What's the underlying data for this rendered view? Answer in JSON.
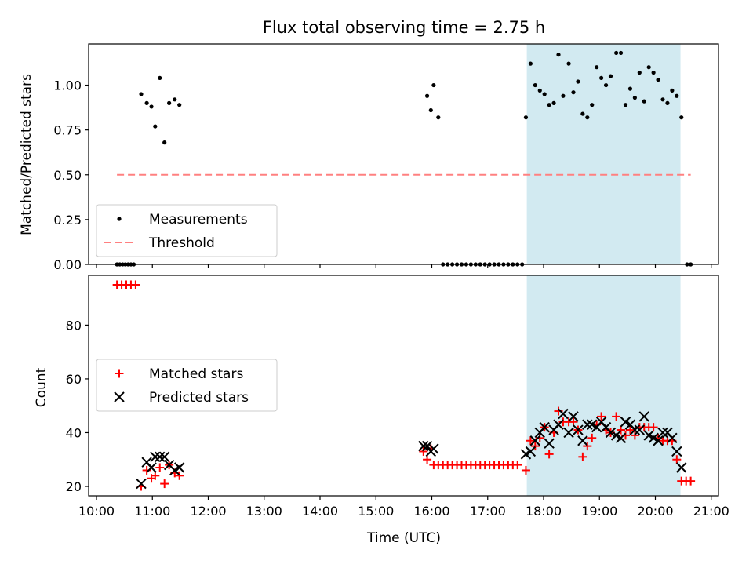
{
  "chart_data": {
    "title": "Flux total observing time = 2.75 h",
    "xlabel": "Time (UTC)",
    "xlim": [
      "10:00",
      "21:00"
    ],
    "x_ticks": [
      "10:00",
      "11:00",
      "12:00",
      "13:00",
      "14:00",
      "15:00",
      "16:00",
      "17:00",
      "18:00",
      "19:00",
      "20:00",
      "21:00"
    ],
    "shaded_region": {
      "start": "17:42",
      "end": "20:27",
      "color": "#add8e6"
    },
    "panels": [
      {
        "type": "scatter",
        "ylabel": "Matched/Predicted stars",
        "ylim": [
          0,
          1.23
        ],
        "y_ticks": [
          "0.00",
          "0.25",
          "0.50",
          "0.75",
          "1.00"
        ],
        "y_tick_values": [
          0,
          0.25,
          0.5,
          0.75,
          1.0
        ],
        "legend_position": "lower-left",
        "threshold": {
          "name": "Threshold",
          "value": 0.5,
          "x_start": "10:22",
          "x_end": "20:38",
          "color": "#ff8080"
        },
        "series": [
          {
            "name": "Measurements",
            "color": "#000000",
            "points": [
              [
                "10:22",
                0
              ],
              [
                "10:25",
                0
              ],
              [
                "10:28",
                0
              ],
              [
                "10:31",
                0
              ],
              [
                "10:34",
                0
              ],
              [
                "10:37",
                0
              ],
              [
                "10:40",
                0
              ],
              [
                "10:48",
                0.95
              ],
              [
                "10:54",
                0.9
              ],
              [
                "10:59",
                0.88
              ],
              [
                "11:03",
                0.77
              ],
              [
                "11:08",
                1.04
              ],
              [
                "11:13",
                0.68
              ],
              [
                "11:18",
                0.9
              ],
              [
                "11:24",
                0.92
              ],
              [
                "11:29",
                0.89
              ],
              [
                "15:55",
                0.94
              ],
              [
                "15:59",
                0.86
              ],
              [
                "16:02",
                1.0
              ],
              [
                "16:07",
                0.82
              ],
              [
                "16:12",
                0
              ],
              [
                "16:17",
                0
              ],
              [
                "16:22",
                0
              ],
              [
                "16:27",
                0
              ],
              [
                "16:32",
                0
              ],
              [
                "16:37",
                0
              ],
              [
                "16:42",
                0
              ],
              [
                "16:47",
                0
              ],
              [
                "16:52",
                0
              ],
              [
                "16:57",
                0
              ],
              [
                "17:02",
                0
              ],
              [
                "17:07",
                0
              ],
              [
                "17:12",
                0
              ],
              [
                "17:17",
                0
              ],
              [
                "17:22",
                0
              ],
              [
                "17:27",
                0
              ],
              [
                "17:32",
                0
              ],
              [
                "17:37",
                0
              ],
              [
                "17:41",
                0.82
              ],
              [
                "17:46",
                1.12
              ],
              [
                "17:51",
                1.0
              ],
              [
                "17:56",
                0.97
              ],
              [
                "18:01",
                0.95
              ],
              [
                "18:06",
                0.89
              ],
              [
                "18:11",
                0.9
              ],
              [
                "18:16",
                1.17
              ],
              [
                "18:21",
                0.94
              ],
              [
                "18:27",
                1.12
              ],
              [
                "18:32",
                0.96
              ],
              [
                "18:37",
                1.02
              ],
              [
                "18:42",
                0.84
              ],
              [
                "18:47",
                0.82
              ],
              [
                "18:52",
                0.89
              ],
              [
                "18:57",
                1.1
              ],
              [
                "19:02",
                1.04
              ],
              [
                "19:07",
                1.0
              ],
              [
                "19:12",
                1.05
              ],
              [
                "19:18",
                1.18
              ],
              [
                "19:23",
                1.18
              ],
              [
                "19:28",
                0.89
              ],
              [
                "19:33",
                0.98
              ],
              [
                "19:38",
                0.93
              ],
              [
                "19:43",
                1.07
              ],
              [
                "19:48",
                0.91
              ],
              [
                "19:53",
                1.1
              ],
              [
                "19:58",
                1.07
              ],
              [
                "20:03",
                1.03
              ],
              [
                "20:08",
                0.92
              ],
              [
                "20:13",
                0.9
              ],
              [
                "20:18",
                0.97
              ],
              [
                "20:23",
                0.94
              ],
              [
                "20:28",
                0.82
              ],
              [
                "20:34",
                0
              ],
              [
                "20:38",
                0
              ]
            ]
          }
        ]
      },
      {
        "type": "scatter",
        "ylabel": "Count",
        "ylim": [
          16.5,
          98.5
        ],
        "y_ticks": [
          "20",
          "40",
          "60",
          "80"
        ],
        "y_tick_values": [
          20,
          40,
          60,
          80
        ],
        "legend_position": "center-left",
        "series": [
          {
            "name": "Matched stars",
            "marker": "+",
            "color": "#ff0000",
            "points": [
              [
                "10:22",
                95
              ],
              [
                "10:27",
                95
              ],
              [
                "10:32",
                95
              ],
              [
                "10:37",
                95
              ],
              [
                "10:42",
                95
              ],
              [
                "10:48",
                20
              ],
              [
                "10:54",
                26
              ],
              [
                "10:59",
                23
              ],
              [
                "11:03",
                24
              ],
              [
                "11:08",
                27
              ],
              [
                "11:13",
                21
              ],
              [
                "11:18",
                28
              ],
              [
                "11:24",
                25
              ],
              [
                "11:29",
                24
              ],
              [
                "15:51",
                33
              ],
              [
                "15:55",
                30
              ],
              [
                "15:59",
                34
              ],
              [
                "16:02",
                28
              ],
              [
                "16:07",
                28
              ],
              [
                "16:12",
                28
              ],
              [
                "16:17",
                28
              ],
              [
                "16:22",
                28
              ],
              [
                "16:27",
                28
              ],
              [
                "16:32",
                28
              ],
              [
                "16:37",
                28
              ],
              [
                "16:42",
                28
              ],
              [
                "16:47",
                28
              ],
              [
                "16:52",
                28
              ],
              [
                "16:57",
                28
              ],
              [
                "17:02",
                28
              ],
              [
                "17:07",
                28
              ],
              [
                "17:12",
                28
              ],
              [
                "17:17",
                28
              ],
              [
                "17:22",
                28
              ],
              [
                "17:27",
                28
              ],
              [
                "17:32",
                28
              ],
              [
                "17:41",
                26
              ],
              [
                "17:46",
                37
              ],
              [
                "17:51",
                35
              ],
              [
                "17:56",
                38
              ],
              [
                "18:01",
                42
              ],
              [
                "18:06",
                32
              ],
              [
                "18:11",
                40
              ],
              [
                "18:16",
                48
              ],
              [
                "18:21",
                44
              ],
              [
                "18:27",
                44
              ],
              [
                "18:32",
                44
              ],
              [
                "18:37",
                41
              ],
              [
                "18:42",
                31
              ],
              [
                "18:47",
                35
              ],
              [
                "18:52",
                38
              ],
              [
                "18:57",
                43
              ],
              [
                "19:02",
                46
              ],
              [
                "19:07",
                41
              ],
              [
                "19:12",
                40
              ],
              [
                "19:18",
                46
              ],
              [
                "19:23",
                41
              ],
              [
                "19:28",
                39
              ],
              [
                "19:33",
                41
              ],
              [
                "19:38",
                39
              ],
              [
                "19:43",
                42
              ],
              [
                "19:48",
                42
              ],
              [
                "19:53",
                42
              ],
              [
                "19:58",
                42
              ],
              [
                "20:03",
                38
              ],
              [
                "20:08",
                37
              ],
              [
                "20:13",
                37
              ],
              [
                "20:18",
                37
              ],
              [
                "20:23",
                30
              ],
              [
                "20:28",
                22
              ],
              [
                "20:33",
                22
              ],
              [
                "20:38",
                22
              ]
            ]
          },
          {
            "name": "Predicted stars",
            "marker": "x",
            "color": "#000000",
            "points": [
              [
                "10:48",
                21
              ],
              [
                "10:54",
                29
              ],
              [
                "10:59",
                27
              ],
              [
                "11:03",
                31
              ],
              [
                "11:08",
                31
              ],
              [
                "11:13",
                31
              ],
              [
                "11:18",
                28
              ],
              [
                "11:24",
                26
              ],
              [
                "11:29",
                27
              ],
              [
                "15:51",
                35
              ],
              [
                "15:55",
                35
              ],
              [
                "15:59",
                33
              ],
              [
                "16:02",
                34
              ],
              [
                "17:41",
                32
              ],
              [
                "17:46",
                33
              ],
              [
                "17:51",
                37
              ],
              [
                "17:56",
                40
              ],
              [
                "18:01",
                42
              ],
              [
                "18:06",
                36
              ],
              [
                "18:11",
                41
              ],
              [
                "18:16",
                43
              ],
              [
                "18:21",
                47
              ],
              [
                "18:27",
                40
              ],
              [
                "18:32",
                46
              ],
              [
                "18:37",
                41
              ],
              [
                "18:42",
                37
              ],
              [
                "18:47",
                43
              ],
              [
                "18:52",
                43
              ],
              [
                "18:57",
                42
              ],
              [
                "19:02",
                44
              ],
              [
                "19:07",
                42
              ],
              [
                "19:12",
                40
              ],
              [
                "19:18",
                39
              ],
              [
                "19:23",
                38
              ],
              [
                "19:28",
                44
              ],
              [
                "19:33",
                43
              ],
              [
                "19:38",
                41
              ],
              [
                "19:43",
                41
              ],
              [
                "19:48",
                46
              ],
              [
                "19:53",
                39
              ],
              [
                "19:58",
                38
              ],
              [
                "20:03",
                37
              ],
              [
                "20:08",
                40
              ],
              [
                "20:13",
                40
              ],
              [
                "20:18",
                38
              ],
              [
                "20:23",
                33
              ],
              [
                "20:28",
                27
              ]
            ]
          }
        ]
      }
    ]
  }
}
